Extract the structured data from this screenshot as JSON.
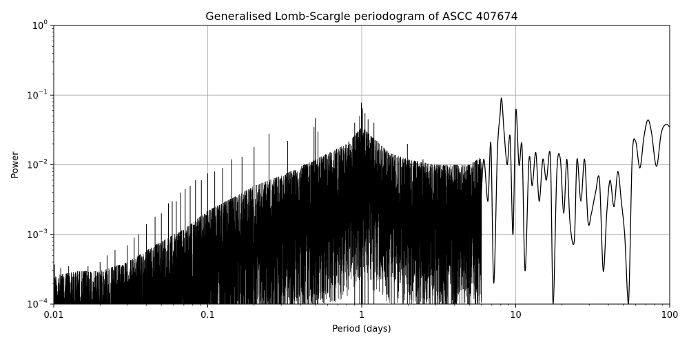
{
  "chart_data": {
    "type": "line",
    "title": "Generalised Lomb-Scargle periodogram of ASCC 407674",
    "xlabel": "Period (days)",
    "ylabel": "Power",
    "xscale": "log",
    "yscale": "log",
    "xlim": [
      0.01,
      100
    ],
    "ylim": [
      0.0001,
      1
    ],
    "grid": true,
    "legend": "none",
    "line_color": "#000000",
    "x_ticks": [
      {
        "value": 0.01,
        "label": "0.01"
      },
      {
        "value": 0.1,
        "label": "0.1"
      },
      {
        "value": 1,
        "label": "1"
      },
      {
        "value": 10,
        "label": "10"
      },
      {
        "value": 100,
        "label": "100"
      }
    ],
    "y_ticks": [
      {
        "value": 0.0001,
        "base": "10",
        "exp": "−4"
      },
      {
        "value": 0.001,
        "base": "10",
        "exp": "−3"
      },
      {
        "value": 0.01,
        "base": "10",
        "exp": "−2"
      },
      {
        "value": 0.1,
        "base": "10",
        "exp": "−1"
      },
      {
        "value": 1,
        "base": "10",
        "exp": "0"
      }
    ],
    "envelope": [
      [
        0.01,
        0.00025
      ],
      [
        0.012,
        0.00028
      ],
      [
        0.015,
        0.0003
      ],
      [
        0.02,
        0.0003
      ],
      [
        0.03,
        0.0004
      ],
      [
        0.05,
        0.0008
      ],
      [
        0.07,
        0.0012
      ],
      [
        0.1,
        0.0022
      ],
      [
        0.15,
        0.0035
      ],
      [
        0.2,
        0.005
      ],
      [
        0.3,
        0.007
      ],
      [
        0.5,
        0.012
      ],
      [
        0.8,
        0.02
      ],
      [
        1.0,
        0.035
      ],
      [
        1.5,
        0.015
      ],
      [
        2.0,
        0.012
      ],
      [
        3.0,
        0.01
      ],
      [
        5.0,
        0.01
      ],
      [
        8.0,
        0.02
      ],
      [
        10.0,
        0.02
      ]
    ],
    "peaks": [
      [
        0.5,
        0.047
      ],
      [
        0.33,
        0.022
      ],
      [
        0.25,
        0.028
      ],
      [
        0.2,
        0.018
      ],
      [
        0.167,
        0.013
      ],
      [
        0.143,
        0.012
      ],
      [
        0.125,
        0.009
      ],
      [
        0.111,
        0.008
      ],
      [
        0.1,
        0.0075
      ],
      [
        0.0909,
        0.006
      ],
      [
        0.0833,
        0.006
      ],
      [
        0.0769,
        0.005
      ],
      [
        0.0714,
        0.0045
      ],
      [
        0.0667,
        0.004
      ],
      [
        0.0625,
        0.003
      ],
      [
        0.0588,
        0.003
      ],
      [
        0.0556,
        0.0028
      ],
      [
        0.05,
        0.002
      ],
      [
        0.0455,
        0.0018
      ],
      [
        0.04,
        0.0014
      ],
      [
        0.0357,
        0.001
      ],
      [
        0.0333,
        0.0009
      ],
      [
        0.03,
        0.0007
      ],
      [
        0.025,
        0.0006
      ],
      [
        0.0222,
        0.0005
      ],
      [
        0.02,
        0.0004
      ],
      [
        0.0167,
        0.00035
      ],
      [
        0.0143,
        0.0003
      ],
      [
        0.0125,
        0.00035
      ],
      [
        0.0111,
        0.00033
      ],
      [
        0.0101,
        0.00037
      ],
      [
        0.995,
        0.078
      ],
      [
        1.002,
        0.06
      ],
      [
        1.01,
        0.065
      ],
      [
        0.97,
        0.05
      ],
      [
        1.05,
        0.055
      ],
      [
        1.1,
        0.045
      ],
      [
        1.2,
        0.04
      ],
      [
        0.9,
        0.04
      ],
      [
        0.52,
        0.03
      ],
      [
        0.49,
        0.035
      ],
      [
        1.98,
        0.02
      ],
      [
        3.03,
        0.008
      ],
      [
        2.5,
        0.012
      ],
      [
        4.0,
        0.01
      ],
      [
        5.0,
        0.01
      ]
    ],
    "smooth_curve": [
      [
        5.9,
        0.002
      ],
      [
        6.2,
        0.012
      ],
      [
        6.6,
        0.003
      ],
      [
        6.9,
        0.02
      ],
      [
        7.2,
        0.0002
      ],
      [
        7.6,
        0.015
      ],
      [
        7.9,
        0.05
      ],
      [
        8.1,
        0.09
      ],
      [
        8.4,
        0.03
      ],
      [
        8.8,
        0.01
      ],
      [
        9.2,
        0.025
      ],
      [
        9.6,
        0.001
      ],
      [
        10.0,
        0.06
      ],
      [
        10.5,
        0.01
      ],
      [
        11.0,
        0.018
      ],
      [
        11.5,
        0.0003
      ],
      [
        12.2,
        0.012
      ],
      [
        12.8,
        0.005
      ],
      [
        13.5,
        0.015
      ],
      [
        14.2,
        0.003
      ],
      [
        15.0,
        0.012
      ],
      [
        15.8,
        0.006
      ],
      [
        16.8,
        0.013
      ],
      [
        17.5,
        0.0001
      ],
      [
        18.5,
        0.008
      ],
      [
        19.5,
        0.012
      ],
      [
        20.5,
        0.002
      ],
      [
        21.5,
        0.012
      ],
      [
        22.5,
        0.0015
      ],
      [
        24.0,
        0.0008
      ],
      [
        25.0,
        0.012
      ],
      [
        26.5,
        0.003
      ],
      [
        28.0,
        0.012
      ],
      [
        29.5,
        0.0015
      ],
      [
        31.0,
        0.002
      ],
      [
        33.0,
        0.004
      ],
      [
        35.0,
        0.006
      ],
      [
        37.0,
        0.0003
      ],
      [
        39.0,
        0.002
      ],
      [
        41.0,
        0.006
      ],
      [
        43.5,
        0.0025
      ],
      [
        46.0,
        0.008
      ],
      [
        48.5,
        0.003
      ],
      [
        51.0,
        0.001
      ],
      [
        54.0,
        0.0001
      ],
      [
        57.0,
        0.012
      ],
      [
        60.0,
        0.022
      ],
      [
        64.0,
        0.009
      ],
      [
        68.0,
        0.025
      ],
      [
        72.0,
        0.044
      ],
      [
        76.0,
        0.03
      ],
      [
        82.0,
        0.0095
      ],
      [
        88.0,
        0.028
      ],
      [
        94.0,
        0.038
      ],
      [
        100.0,
        0.035
      ]
    ]
  }
}
